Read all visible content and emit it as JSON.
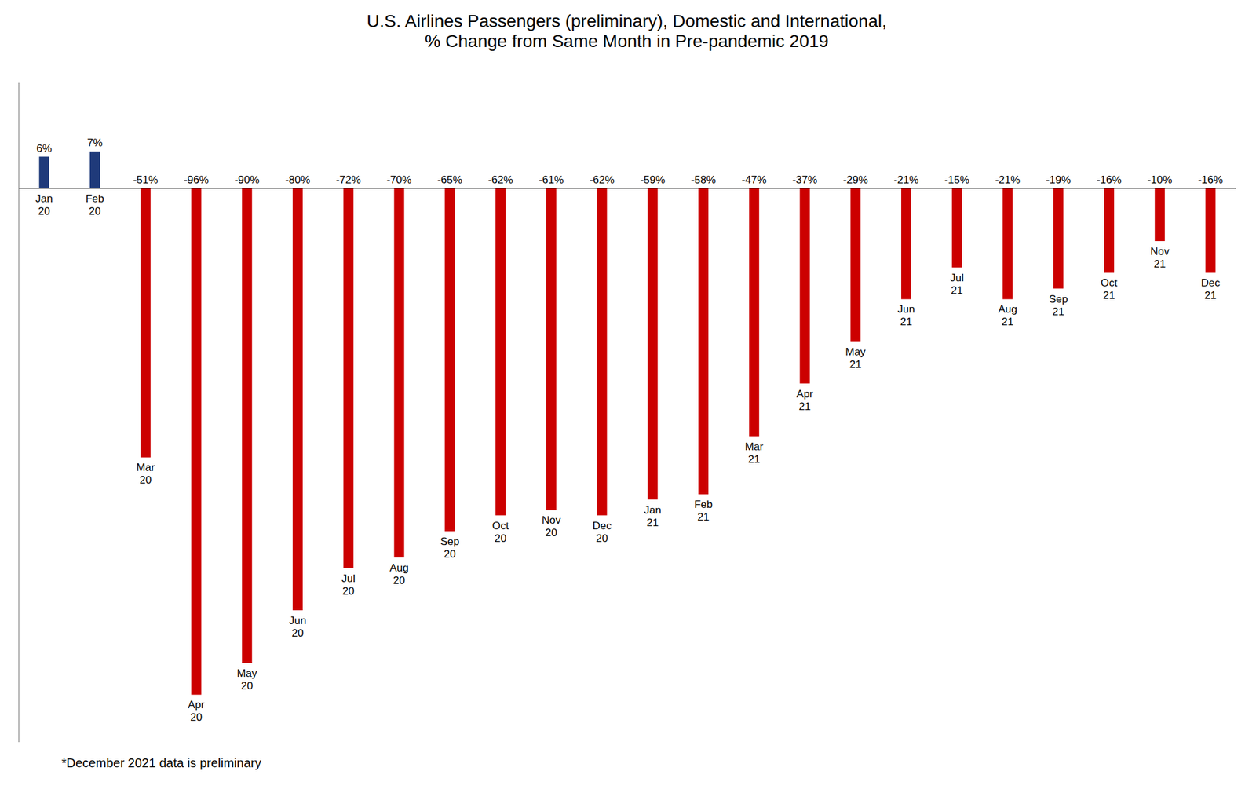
{
  "chart_data": {
    "type": "bar",
    "title": "U.S. Airlines Passengers (preliminary), Domestic and International,\n% Change from Same Month in Pre-pandemic 2019",
    "footnote": "*December 2021 data is preliminary",
    "categories": [
      "Jan\n20",
      "Feb\n20",
      "Mar\n20",
      "Apr\n20",
      "May\n20",
      "Jun\n20",
      "Jul\n20",
      "Aug\n20",
      "Sep\n20",
      "Oct\n20",
      "Nov\n20",
      "Dec\n20",
      "Jan\n21",
      "Feb\n21",
      "Mar\n21",
      "Apr\n21",
      "May\n21",
      "Jun\n21",
      "Jul\n21",
      "Aug\n21",
      "Sep\n21",
      "Oct\n21",
      "Nov\n21",
      "Dec\n21"
    ],
    "values": [
      6,
      7,
      -51,
      -96,
      -90,
      -80,
      -72,
      -70,
      -65,
      -62,
      -61,
      -62,
      -59,
      -58,
      -47,
      -37,
      -29,
      -21,
      -15,
      -21,
      -19,
      -16,
      -10,
      -16
    ],
    "value_labels": [
      "6%",
      "7%",
      "-51%",
      "-96%",
      "-90%",
      "-80%",
      "-72%",
      "-70%",
      "-65%",
      "-62%",
      "-61%",
      "-62%",
      "-59%",
      "-58%",
      "-47%",
      "-37%",
      "-29%",
      "-21%",
      "-15%",
      "-21%",
      "-19%",
      "-16%",
      "-10%",
      "-16%"
    ],
    "data_labels": true,
    "colors": [
      "#1F3A7A",
      "#1F3A7A",
      "#CC0000",
      "#CC0000",
      "#CC0000",
      "#CC0000",
      "#CC0000",
      "#CC0000",
      "#CC0000",
      "#CC0000",
      "#CC0000",
      "#CC0000",
      "#CC0000",
      "#CC0000",
      "#CC0000",
      "#CC0000",
      "#CC0000",
      "#CC0000",
      "#CC0000",
      "#CC0000",
      "#CC0000",
      "#CC0000",
      "#CC0000",
      "#CC0000"
    ],
    "ylim": [
      -105,
      20
    ],
    "tick_labels": "x",
    "grid": false
  }
}
